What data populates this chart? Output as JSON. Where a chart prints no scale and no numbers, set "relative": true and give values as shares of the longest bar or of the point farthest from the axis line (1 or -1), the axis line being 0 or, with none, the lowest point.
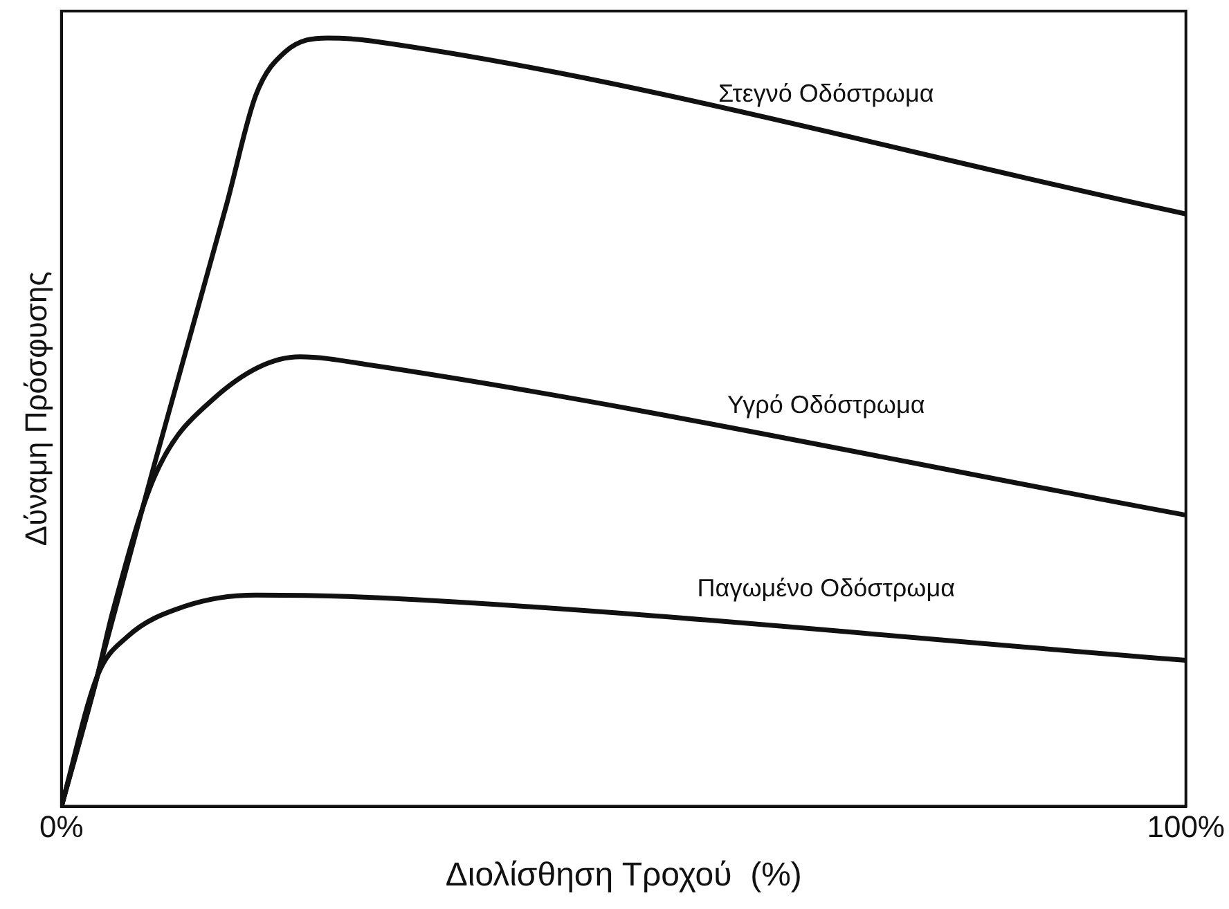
{
  "chart_data": {
    "type": "line",
    "relative": true,
    "xlabel": "Διολίσθηση Τροχού  (%)",
    "ylabel": "Δύναμη Πρόσφυσης",
    "xlim": [
      0,
      100
    ],
    "xticks": [
      {
        "value": 0,
        "label": "0%"
      },
      {
        "value": 100,
        "label": "100%"
      }
    ],
    "legend": false,
    "marker": "none",
    "line_style": "solid",
    "series": [
      {
        "name": "Στεγνό Οδόστρωμα",
        "color": "#111111",
        "x": [
          0,
          3.2,
          8.3,
          14.7,
          17.3,
          19.9,
          23.7,
          27.6,
          100
        ],
        "values": [
          0,
          0.17,
          0.447,
          0.784,
          0.926,
          0.982,
          1,
          0.996,
          0.771
        ]
      },
      {
        "name": "Υγρό Οδόστρωμα",
        "color": "#111111",
        "x": [
          0,
          3.2,
          4.5,
          8.3,
          13.5,
          21.2,
          27.6,
          100
        ],
        "values": [
          0,
          0.17,
          0.25,
          0.43,
          0.53,
          0.585,
          0.574,
          0.379
        ]
      },
      {
        "name": "Παγωμένο Οδόστρωμα",
        "color": "#111111",
        "x": [
          0,
          3.2,
          5.8,
          10.9,
          17.3,
          28.8,
          100
        ],
        "values": [
          0,
          0.17,
          0.22,
          0.26,
          0.275,
          0.271,
          0.19
        ]
      }
    ]
  }
}
